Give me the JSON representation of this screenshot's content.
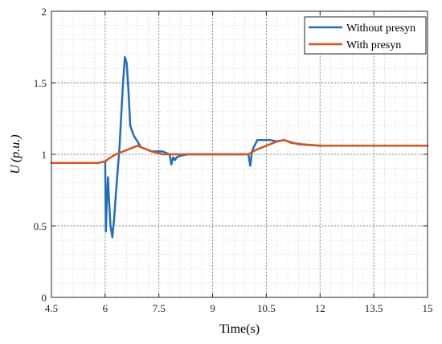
{
  "chart_data": {
    "type": "line",
    "title": "",
    "xlabel": "Time(s)",
    "ylabel": {
      "main": "U",
      "unit": "(p.u.)"
    },
    "xlim": [
      4.5,
      15
    ],
    "ylim": [
      0,
      2
    ],
    "xticks": [
      4.5,
      6,
      7.5,
      9,
      10.5,
      12,
      13.5,
      15
    ],
    "xtick_labels": [
      "4.5",
      "6",
      "7.5",
      "9",
      "10.5",
      "12",
      "13.5",
      "15"
    ],
    "yticks": [
      0,
      0.5,
      1,
      1.5,
      2
    ],
    "ytick_labels": [
      "0",
      "0.5",
      "1",
      "1.5",
      "2"
    ],
    "grid": true,
    "grid_style": "dotted, major and minor",
    "legend_position": "top-right",
    "series": [
      {
        "name": "Without presyn",
        "color": "#1f6fbd",
        "x": [
          4.5,
          5.8,
          6.0,
          6.02,
          6.05,
          6.08,
          6.1,
          6.15,
          6.2,
          6.25,
          6.3,
          6.4,
          6.5,
          6.55,
          6.6,
          6.65,
          6.7,
          6.8,
          6.9,
          7.0,
          7.1,
          7.3,
          7.6,
          7.8,
          7.85,
          7.9,
          7.95,
          8.0,
          8.1,
          8.3,
          8.6,
          9.0,
          9.5,
          10.0,
          10.05,
          10.1,
          10.15,
          10.25,
          10.4,
          10.6,
          10.8,
          11.0,
          11.1,
          11.4,
          12.0,
          13.0,
          14.0,
          15.0
        ],
        "y": [
          0.94,
          0.94,
          0.95,
          0.46,
          0.7,
          0.84,
          0.72,
          0.5,
          0.42,
          0.55,
          0.72,
          1.05,
          1.5,
          1.68,
          1.64,
          1.45,
          1.2,
          1.13,
          1.09,
          1.05,
          1.04,
          1.02,
          1.02,
          1.0,
          0.93,
          0.98,
          0.96,
          0.98,
          0.99,
          1.0,
          1.0,
          1.0,
          1.0,
          1.0,
          0.92,
          1.02,
          1.05,
          1.1,
          1.1,
          1.1,
          1.09,
          1.1,
          1.09,
          1.07,
          1.06,
          1.06,
          1.06,
          1.06
        ]
      },
      {
        "name": "With presyn",
        "color": "#d9541a",
        "x": [
          4.5,
          5.8,
          6.0,
          6.1,
          6.3,
          6.6,
          6.9,
          7.0,
          7.1,
          7.3,
          7.6,
          8.0,
          8.5,
          9.0,
          9.5,
          10.0,
          10.2,
          10.5,
          10.8,
          11.0,
          11.2,
          11.5,
          12.0,
          13.0,
          14.0,
          15.0
        ],
        "y": [
          0.94,
          0.94,
          0.95,
          0.97,
          1.0,
          1.03,
          1.06,
          1.05,
          1.04,
          1.02,
          1.0,
          1.0,
          1.0,
          1.0,
          1.0,
          1.0,
          1.03,
          1.06,
          1.09,
          1.1,
          1.08,
          1.07,
          1.06,
          1.06,
          1.06,
          1.06
        ]
      }
    ]
  }
}
